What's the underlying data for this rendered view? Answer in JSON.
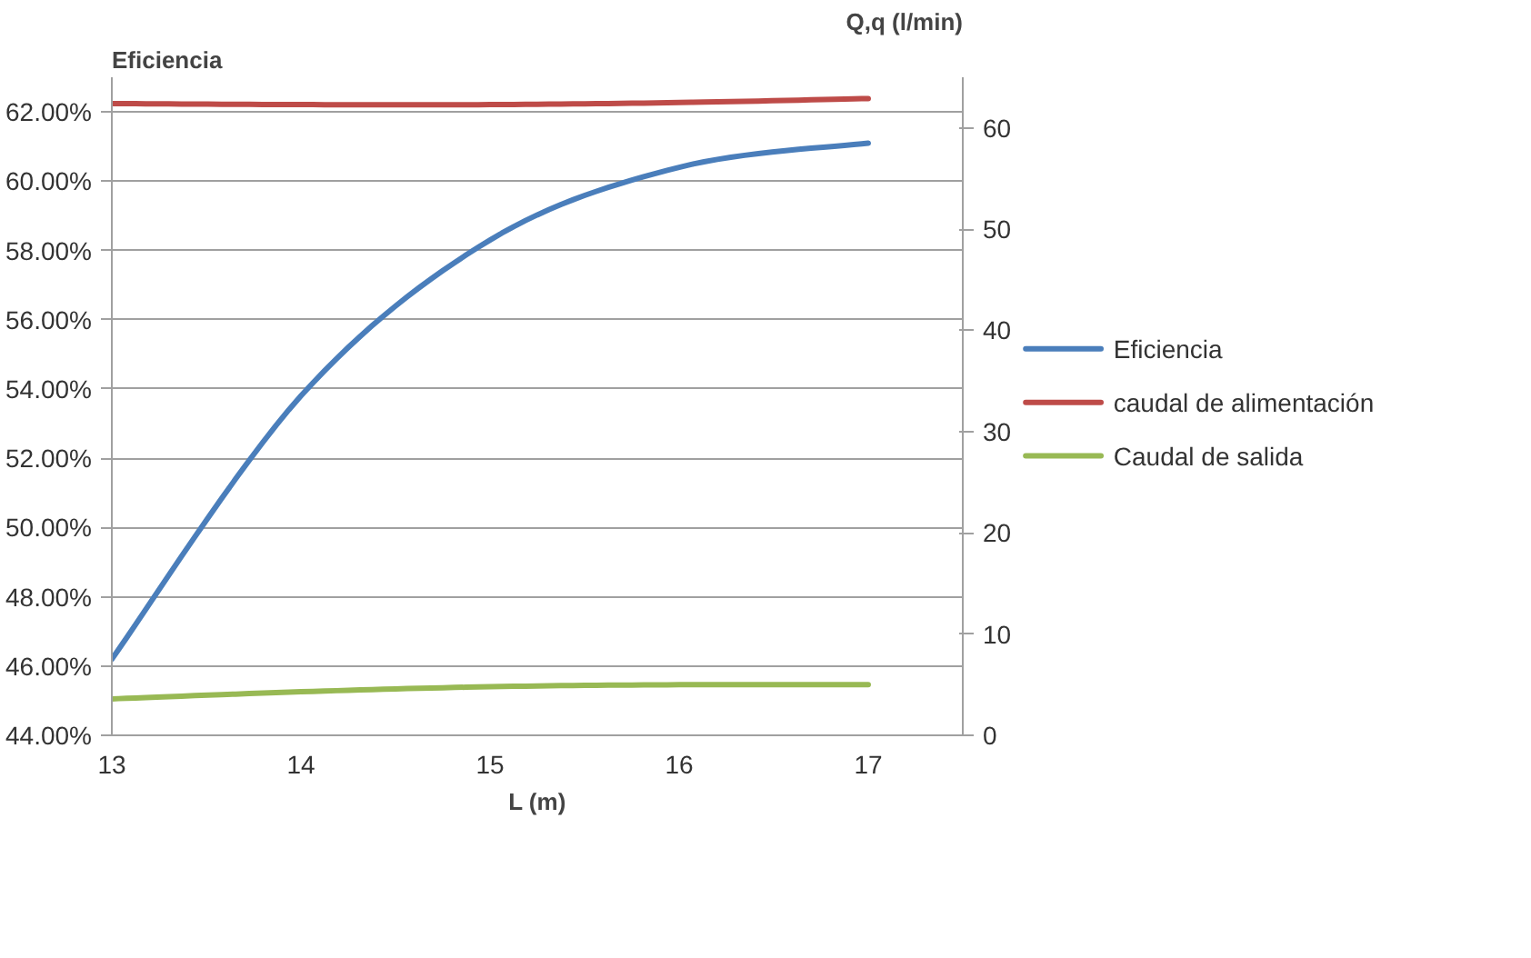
{
  "chart_data": {
    "type": "line",
    "xlabel": "L (m)",
    "ylabel": "Eficiencia",
    "y2label": "Q,q (l/min)",
    "x": [
      13,
      14,
      15,
      16,
      17
    ],
    "series": [
      {
        "name": "Eficiencia",
        "color": "#4a7ebb",
        "values": [
          46.2,
          53.8,
          58.3,
          60.4,
          61.1
        ]
      },
      {
        "name": "caudal de alimentación",
        "color": "#be4b48",
        "axis": "y2",
        "values": [
          62.4,
          62.3,
          62.3,
          62.5,
          62.9
        ]
      },
      {
        "name": "Caudal de salida",
        "color": "#98b954",
        "axis": "y2",
        "values": [
          3.6,
          4.3,
          4.8,
          5.0,
          5.0
        ]
      }
    ],
    "xlim": [
      13,
      17.5
    ],
    "xticks": [
      13,
      14,
      15,
      16,
      17
    ],
    "ylim": [
      44,
      63
    ],
    "yticks": [
      {
        "value": 44,
        "label": "44.00%"
      },
      {
        "value": 46,
        "label": "46.00%"
      },
      {
        "value": 48,
        "label": "48.00%"
      },
      {
        "value": 50,
        "label": "50.00%"
      },
      {
        "value": 52,
        "label": "52.00%"
      },
      {
        "value": 54,
        "label": "54.00%"
      },
      {
        "value": 56,
        "label": "56.00%"
      },
      {
        "value": 58,
        "label": "58.00%"
      },
      {
        "value": 60,
        "label": "60.00%"
      },
      {
        "value": 62,
        "label": "62.00%"
      }
    ],
    "y2lim": [
      0,
      65
    ],
    "y2ticks": [
      0,
      10,
      20,
      30,
      40,
      50,
      60
    ],
    "grid": "y",
    "legend": "right",
    "marker": "none",
    "line_style": "solid"
  }
}
